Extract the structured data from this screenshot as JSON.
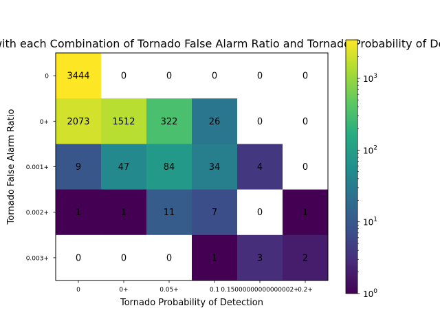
{
  "chart_data": {
    "type": "heatmap",
    "title": "Number of Days with each Combination of Tornado False Alarm Ratio and Tornado Probability of Detection",
    "xlabel": "Tornado Probability of Detection",
    "ylabel": "Tornado False Alarm Ratio",
    "x_categories": [
      "0",
      "0+",
      "0.05+",
      "0.1",
      "0.15000000000000002+",
      "0.2+"
    ],
    "y_categories": [
      "0",
      "0+",
      "0.001+",
      "0.002+",
      "0.003+"
    ],
    "values": [
      [
        3444,
        0,
        0,
        0,
        0,
        0
      ],
      [
        2073,
        1512,
        322,
        26,
        0,
        0
      ],
      [
        9,
        47,
        84,
        34,
        4,
        0
      ],
      [
        1,
        1,
        11,
        7,
        0,
        1
      ],
      [
        0,
        0,
        0,
        1,
        3,
        2
      ]
    ],
    "color_scale": "log",
    "colormap": "viridis",
    "zero_cells_color": "#ffffff",
    "colorbar": {
      "min": 1,
      "max": 3444,
      "ticks": [
        {
          "value": 1,
          "base": "10",
          "exp": "0"
        },
        {
          "value": 10,
          "base": "10",
          "exp": "1"
        },
        {
          "value": 100,
          "base": "10",
          "exp": "2"
        },
        {
          "value": 1000,
          "base": "10",
          "exp": "3"
        }
      ]
    }
  }
}
